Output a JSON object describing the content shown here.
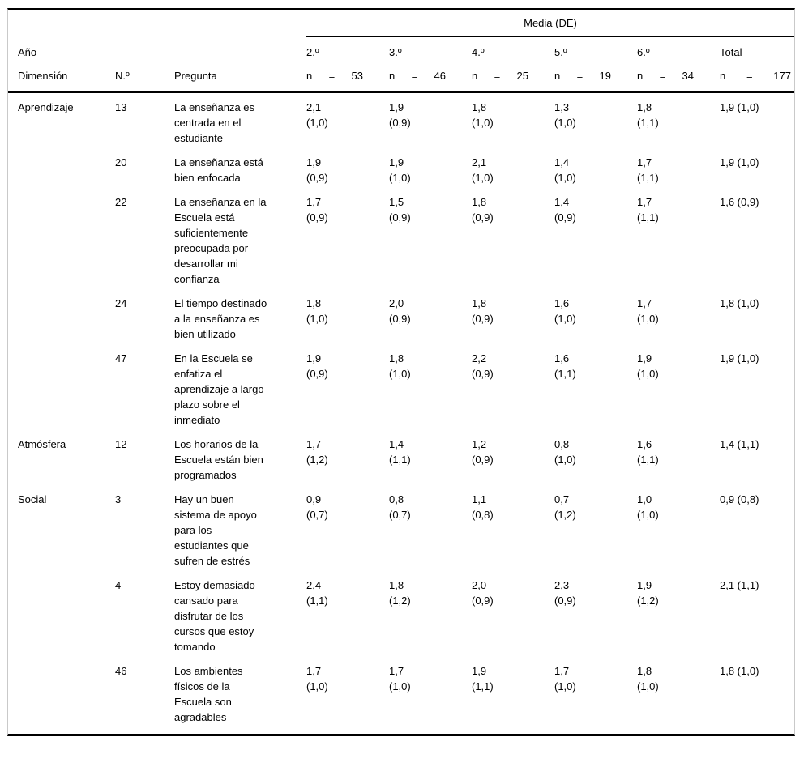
{
  "table": {
    "header": {
      "media_label": "Media (DE)",
      "ano_label": "Año",
      "dimension_label": "Dimensión",
      "numero_label": "N.º",
      "pregunta_label": "Pregunta",
      "cols": [
        {
          "label": "2.º",
          "n_label": "n",
          "eq": "=",
          "count": "53"
        },
        {
          "label": "3.º",
          "n_label": "n",
          "eq": "=",
          "count": "46"
        },
        {
          "label": "4.º",
          "n_label": "n",
          "eq": "=",
          "count": "25"
        },
        {
          "label": "5.º",
          "n_label": "n",
          "eq": "=",
          "count": "19"
        },
        {
          "label": "6.º",
          "n_label": "n",
          "eq": "=",
          "count": "34"
        },
        {
          "label": "Total",
          "n_label": "n",
          "eq": "=",
          "count": "177"
        }
      ]
    },
    "rows": [
      {
        "dimension": "Aprendizaje",
        "number": "13",
        "question": "La enseñanza es centrada en el estudiante",
        "values": [
          {
            "mean": "2,1",
            "sd": "(1,0)"
          },
          {
            "mean": "1,9",
            "sd": "(0,9)"
          },
          {
            "mean": "1,8",
            "sd": "(1,0)"
          },
          {
            "mean": "1,3",
            "sd": "(1,0)"
          },
          {
            "mean": "1,8",
            "sd": "(1,1)"
          }
        ],
        "total": "1,9 (1,0)"
      },
      {
        "dimension": "",
        "number": "20",
        "question": "La enseñanza está bien enfocada",
        "values": [
          {
            "mean": "1,9",
            "sd": "(0,9)"
          },
          {
            "mean": "1,9",
            "sd": "(1,0)"
          },
          {
            "mean": "2,1",
            "sd": "(1,0)"
          },
          {
            "mean": "1,4",
            "sd": "(1,0)"
          },
          {
            "mean": "1,7",
            "sd": "(1,1)"
          }
        ],
        "total": "1,9 (1,0)"
      },
      {
        "dimension": "",
        "number": "22",
        "question": "La enseñanza en la Escuela está suficientemente preocupada por desarrollar mi confianza",
        "values": [
          {
            "mean": "1,7",
            "sd": "(0,9)"
          },
          {
            "mean": "1,5",
            "sd": "(0,9)"
          },
          {
            "mean": "1,8",
            "sd": "(0,9)"
          },
          {
            "mean": "1,4",
            "sd": "(0,9)"
          },
          {
            "mean": "1,7",
            "sd": "(1,1)"
          }
        ],
        "total": "1,6 (0,9)"
      },
      {
        "dimension": "",
        "number": "24",
        "question": "El tiempo destinado a la enseñanza es bien utilizado",
        "values": [
          {
            "mean": "1,8",
            "sd": "(1,0)"
          },
          {
            "mean": "2,0",
            "sd": "(0,9)"
          },
          {
            "mean": "1,8",
            "sd": "(0,9)"
          },
          {
            "mean": "1,6",
            "sd": "(1,0)"
          },
          {
            "mean": "1,7",
            "sd": "(1,0)"
          }
        ],
        "total": "1,8 (1,0)"
      },
      {
        "dimension": "",
        "number": "47",
        "question": "En la Escuela se enfatiza el aprendizaje a largo plazo sobre el inmediato",
        "values": [
          {
            "mean": "1,9",
            "sd": "(0,9)"
          },
          {
            "mean": "1,8",
            "sd": "(1,0)"
          },
          {
            "mean": "2,2",
            "sd": "(0,9)"
          },
          {
            "mean": "1,6",
            "sd": "(1,1)"
          },
          {
            "mean": "1,9",
            "sd": "(1,0)"
          }
        ],
        "total": "1,9 (1,0)"
      },
      {
        "dimension": "Atmósfera",
        "number": "12",
        "question": "Los horarios de la Escuela están bien programados",
        "values": [
          {
            "mean": "1,7",
            "sd": "(1,2)"
          },
          {
            "mean": "1,4",
            "sd": "(1,1)"
          },
          {
            "mean": "1,2",
            "sd": "(0,9)"
          },
          {
            "mean": "0,8",
            "sd": "(1,0)"
          },
          {
            "mean": "1,6",
            "sd": "(1,1)"
          }
        ],
        "total": "1,4 (1,1)"
      },
      {
        "dimension": "Social",
        "number": "3",
        "question": "Hay un buen sistema de apoyo para los estudiantes que sufren de estrés",
        "values": [
          {
            "mean": "0,9",
            "sd": "(0,7)"
          },
          {
            "mean": "0,8",
            "sd": "(0,7)"
          },
          {
            "mean": "1,1",
            "sd": "(0,8)"
          },
          {
            "mean": "0,7",
            "sd": "(1,2)"
          },
          {
            "mean": "1,0",
            "sd": "(1,0)"
          }
        ],
        "total": "0,9 (0,8)"
      },
      {
        "dimension": "",
        "number": "4",
        "question": "Estoy demasiado cansado para disfrutar de los cursos que estoy tomando",
        "values": [
          {
            "mean": "2,4",
            "sd": "(1,1)"
          },
          {
            "mean": "1,8",
            "sd": "(1,2)"
          },
          {
            "mean": "2,0",
            "sd": "(0,9)"
          },
          {
            "mean": "2,3",
            "sd": "(0,9)"
          },
          {
            "mean": "1,9",
            "sd": "(1,2)"
          }
        ],
        "total": "2,1 (1,1)"
      },
      {
        "dimension": "",
        "number": "46",
        "question": "Los ambientes físicos de la Escuela son agradables",
        "values": [
          {
            "mean": "1,7",
            "sd": "(1,0)"
          },
          {
            "mean": "1,7",
            "sd": "(1,0)"
          },
          {
            "mean": "1,9",
            "sd": "(1,1)"
          },
          {
            "mean": "1,7",
            "sd": "(1,0)"
          },
          {
            "mean": "1,8",
            "sd": "(1,0)"
          }
        ],
        "total": "1,8 (1,0)"
      }
    ]
  }
}
